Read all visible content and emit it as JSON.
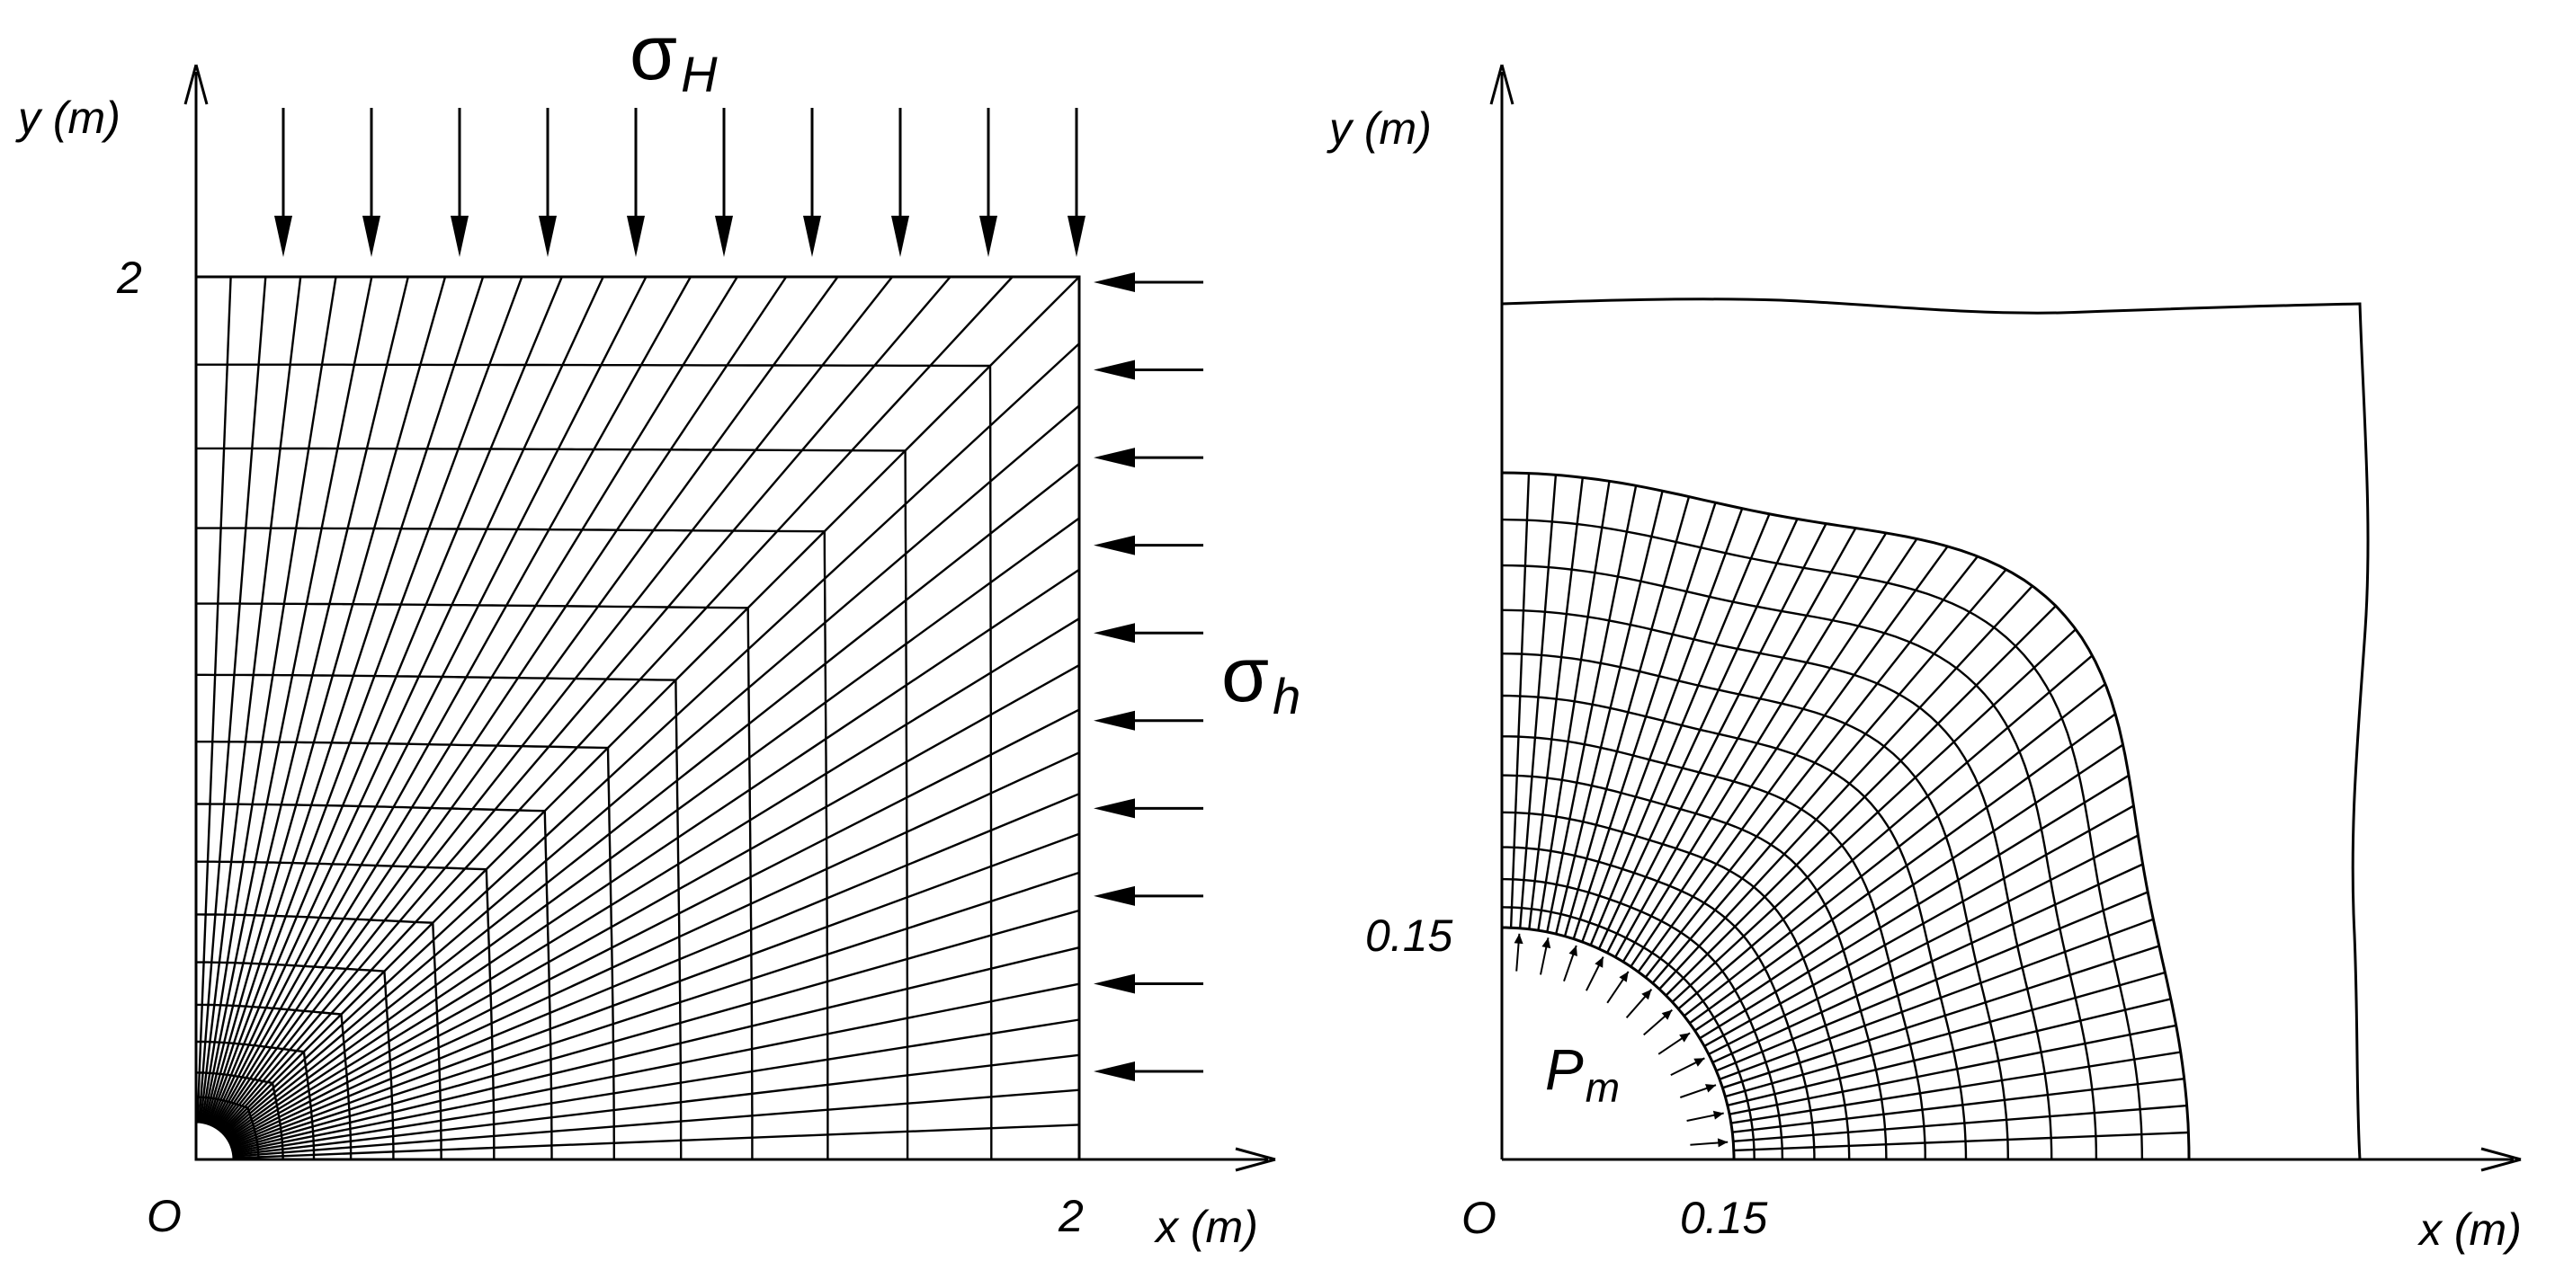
{
  "left_panel": {
    "y_axis_label": "y (m)",
    "x_axis_label": "x (m)",
    "origin_label": "O",
    "y_tick_label": "2",
    "x_tick_label": "2",
    "top_load_symbol": "σ",
    "top_load_subscript": "H",
    "side_load_symbol": "σ",
    "side_load_subscript": "h",
    "top_arrow_count": 10,
    "side_arrow_count": 10,
    "radial_line_count": 40,
    "mesh_ring_count": 16
  },
  "right_panel": {
    "y_axis_label": "y (m)",
    "x_axis_label": "x (m)",
    "origin_label": "O",
    "y_tick_label": "0.15",
    "x_tick_label": "0.15",
    "pressure_symbol": "P",
    "pressure_subscript": "m",
    "radial_line_count": 40,
    "mesh_ring_count": 12,
    "pressure_arrow_count": 12
  }
}
